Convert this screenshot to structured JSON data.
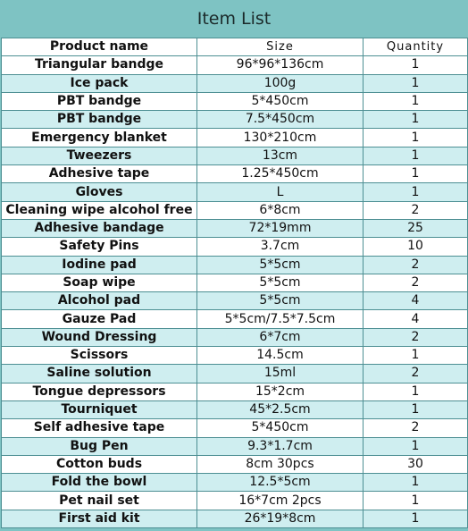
{
  "title": "Item List",
  "headers": {
    "name": "Product name",
    "size": "Size",
    "quantity": "Quantity"
  },
  "rows": [
    {
      "name": "Triangular bandge",
      "size": "96*96*136cm",
      "quantity": "1"
    },
    {
      "name": "Ice pack",
      "size": "100g",
      "quantity": "1"
    },
    {
      "name": "PBT bandge",
      "size": "5*450cm",
      "quantity": "1"
    },
    {
      "name": "PBT bandge",
      "size": "7.5*450cm",
      "quantity": "1"
    },
    {
      "name": "Emergency blanket",
      "size": "130*210cm",
      "quantity": "1"
    },
    {
      "name": "Tweezers",
      "size": "13cm",
      "quantity": "1"
    },
    {
      "name": "Adhesive tape",
      "size": "1.25*450cm",
      "quantity": "1"
    },
    {
      "name": "Gloves",
      "size": "L",
      "quantity": "1"
    },
    {
      "name": "Cleaning wipe alcohol free",
      "size": "6*8cm",
      "quantity": "2"
    },
    {
      "name": "Adhesive bandage",
      "size": "72*19mm",
      "quantity": "25"
    },
    {
      "name": "Safety Pins",
      "size": "3.7cm",
      "quantity": "10"
    },
    {
      "name": "Iodine pad",
      "size": "5*5cm",
      "quantity": "2"
    },
    {
      "name": "Soap wipe",
      "size": "5*5cm",
      "quantity": "2"
    },
    {
      "name": "Alcohol pad",
      "size": "5*5cm",
      "quantity": "4"
    },
    {
      "name": "Gauze Pad",
      "size": "5*5cm/7.5*7.5cm",
      "quantity": "4"
    },
    {
      "name": "Wound Dressing",
      "size": "6*7cm",
      "quantity": "2"
    },
    {
      "name": "Scissors",
      "size": "14.5cm",
      "quantity": "1"
    },
    {
      "name": "Saline solution",
      "size": "15ml",
      "quantity": "2"
    },
    {
      "name": "Tongue depressors",
      "size": "15*2cm",
      "quantity": "1"
    },
    {
      "name": "Tourniquet",
      "size": "45*2.5cm",
      "quantity": "1"
    },
    {
      "name": "Self adhesive tape",
      "size": "5*450cm",
      "quantity": "2"
    },
    {
      "name": "Bug Pen",
      "size": "9.3*1.7cm",
      "quantity": "1"
    },
    {
      "name": "Cotton buds",
      "size": "8cm 30pcs",
      "quantity": "30"
    },
    {
      "name": "Fold the bowl",
      "size": "12.5*5cm",
      "quantity": "1"
    },
    {
      "name": "Pet nail set",
      "size": "16*7cm 2pcs",
      "quantity": "1"
    },
    {
      "name": "First aid kit",
      "size": "26*19*8cm",
      "quantity": "1"
    }
  ],
  "colors": {
    "title_bar": "#7ec3c3",
    "row_alt": "#cfeef0",
    "border": "#4d8f93"
  }
}
